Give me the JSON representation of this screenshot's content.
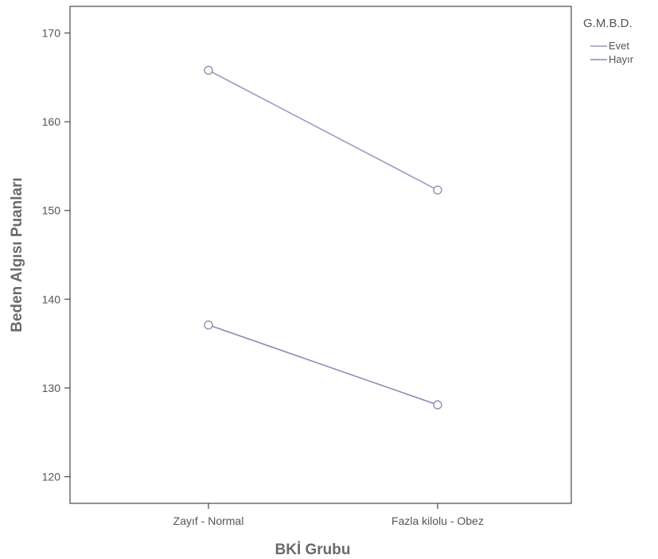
{
  "chart_data": {
    "type": "line",
    "title": "",
    "xlabel": "BKİ Grubu",
    "ylabel": "Beden Algısı Puanları",
    "categories": [
      "Zayıf - Normal",
      "Fazla kilolu - Obez"
    ],
    "ylim": [
      117,
      173
    ],
    "yticks": [
      120,
      130,
      140,
      150,
      160,
      170
    ],
    "grid": false,
    "legend": {
      "title": "G.M.B.D.",
      "placement": "right-top"
    },
    "series": [
      {
        "name": "Evet",
        "values": [
          165.8,
          152.3
        ],
        "color": "#9b9bc4"
      },
      {
        "name": "Hayır",
        "values": [
          137.1,
          128.1
        ],
        "color": "#8a8ab8"
      }
    ],
    "colors": {
      "axis": "#4a4a4a",
      "text": "#555555",
      "marker": "#9090b0"
    }
  }
}
